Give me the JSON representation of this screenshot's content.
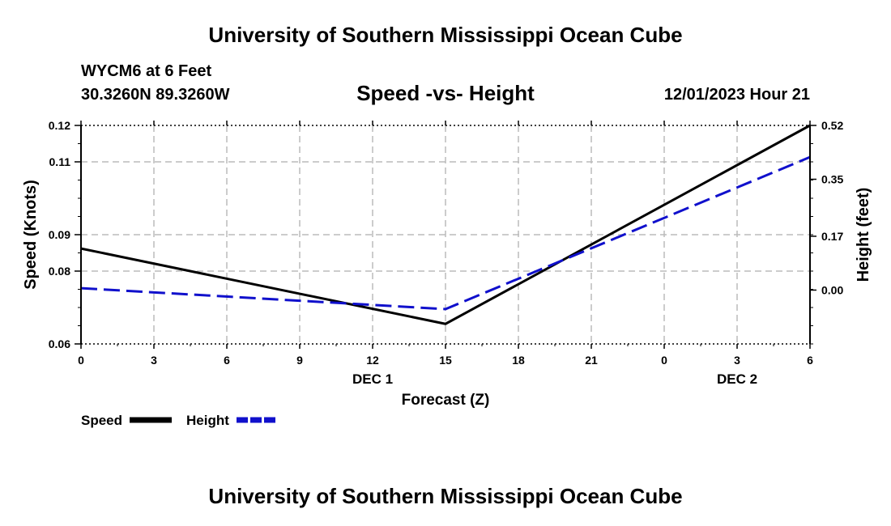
{
  "header": {
    "title": "University of Southern Mississippi Ocean Cube",
    "station": "WYCM6 at 6 Feet",
    "coords": "30.3260N  89.3260W",
    "datetime": "12/01/2023 Hour 21"
  },
  "footer": {
    "title": "University of Southern Mississippi Ocean Cube"
  },
  "colors": {
    "speed": "#000000",
    "height": "#1010cc",
    "grid": "#bbbbbb"
  },
  "chart_data": {
    "type": "line",
    "title": "Speed -vs- Height",
    "xlabel": "Forecast (Z)",
    "ylabel_left": "Speed (Knots)",
    "ylabel_right": "Height (feet)",
    "x": [
      0,
      3,
      6,
      9,
      12,
      15,
      18,
      21,
      24,
      27,
      30
    ],
    "x_tick_labels": [
      "0",
      "3",
      "6",
      "9",
      "12",
      "15",
      "18",
      "21",
      "0",
      "3",
      "6"
    ],
    "date_labels": [
      {
        "x": 12,
        "label": "DEC 1"
      },
      {
        "x": 27,
        "label": "DEC 2"
      }
    ],
    "left_axis": {
      "ticks": [
        0.06,
        0.08,
        0.09,
        0.11,
        0.12
      ],
      "tick_labels": [
        "0.06",
        "0.08",
        "0.09",
        "0.11",
        "0.12"
      ],
      "range": [
        0.06,
        0.12
      ]
    },
    "right_axis": {
      "ticks": [
        0.0,
        0.17,
        0.35,
        0.52
      ],
      "tick_labels": [
        "0.00",
        "0.17",
        "0.35",
        "0.52"
      ],
      "range": [
        -0.17,
        0.52
      ]
    },
    "grid": true,
    "legend_position": "bottom-left",
    "series": [
      {
        "name": "Speed",
        "axis": "left",
        "style": "solid",
        "x": [
          0,
          15,
          30
        ],
        "values": [
          0.0862,
          0.0655,
          0.12
        ]
      },
      {
        "name": "Height",
        "axis": "right",
        "style": "dashed",
        "x": [
          0,
          15,
          30
        ],
        "values": [
          0.006,
          -0.06,
          0.42
        ]
      }
    ]
  }
}
